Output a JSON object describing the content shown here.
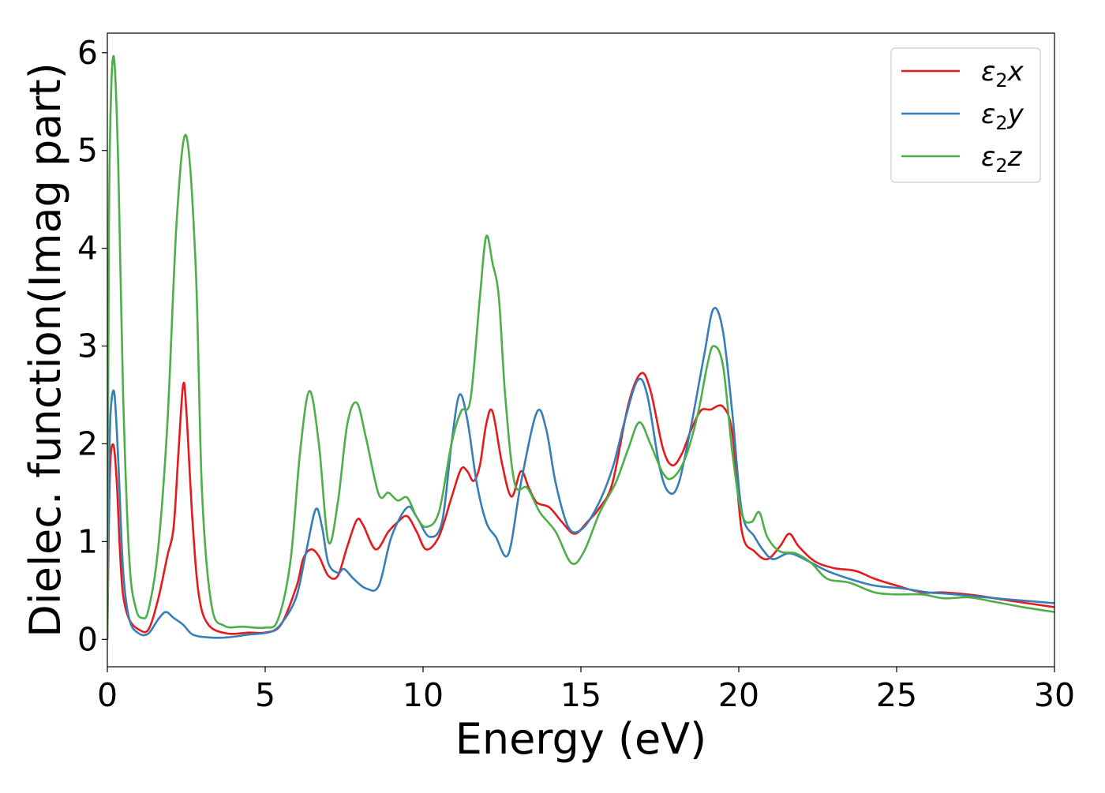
{
  "chart_data": {
    "type": "line",
    "title": "",
    "xlabel": "Energy (eV)",
    "ylabel": "Dielec. function(Imag part)",
    "xlim": [
      0,
      30
    ],
    "ylim": [
      -0.28,
      6.2
    ],
    "xticks": [
      0,
      5,
      10,
      15,
      20,
      25,
      30
    ],
    "yticks": [
      0,
      1,
      2,
      3,
      4,
      5,
      6
    ],
    "grid": false,
    "legend_position": "top-right",
    "series": [
      {
        "name": "ε2x",
        "legend": {
          "main": "ε",
          "sub": "2",
          "tail": "x"
        },
        "color": "#e41a1c",
        "points": [
          [
            0,
            0
          ],
          [
            0.05,
            1.2
          ],
          [
            0.1,
            1.85
          ],
          [
            0.2,
            1.98
          ],
          [
            0.3,
            1.6
          ],
          [
            0.4,
            0.9
          ],
          [
            0.5,
            0.45
          ],
          [
            0.7,
            0.2
          ],
          [
            1.0,
            0.1
          ],
          [
            1.3,
            0.1
          ],
          [
            1.6,
            0.4
          ],
          [
            1.9,
            0.85
          ],
          [
            2.1,
            1.15
          ],
          [
            2.25,
            1.9
          ],
          [
            2.4,
            2.6
          ],
          [
            2.5,
            2.35
          ],
          [
            2.7,
            1.2
          ],
          [
            2.9,
            0.45
          ],
          [
            3.2,
            0.15
          ],
          [
            3.8,
            0.06
          ],
          [
            4.5,
            0.07
          ],
          [
            5.0,
            0.07
          ],
          [
            5.5,
            0.15
          ],
          [
            6.0,
            0.55
          ],
          [
            6.2,
            0.82
          ],
          [
            6.45,
            0.92
          ],
          [
            6.7,
            0.85
          ],
          [
            7.0,
            0.65
          ],
          [
            7.3,
            0.65
          ],
          [
            7.6,
            0.95
          ],
          [
            7.9,
            1.22
          ],
          [
            8.1,
            1.17
          ],
          [
            8.5,
            0.92
          ],
          [
            8.9,
            1.1
          ],
          [
            9.2,
            1.2
          ],
          [
            9.5,
            1.26
          ],
          [
            9.8,
            1.1
          ],
          [
            10.1,
            0.92
          ],
          [
            10.5,
            1.05
          ],
          [
            10.9,
            1.45
          ],
          [
            11.2,
            1.74
          ],
          [
            11.4,
            1.72
          ],
          [
            11.6,
            1.62
          ],
          [
            11.8,
            1.78
          ],
          [
            12.0,
            2.2
          ],
          [
            12.2,
            2.33
          ],
          [
            12.5,
            1.8
          ],
          [
            12.8,
            1.46
          ],
          [
            13.1,
            1.72
          ],
          [
            13.35,
            1.55
          ],
          [
            13.6,
            1.4
          ],
          [
            14.0,
            1.35
          ],
          [
            14.4,
            1.2
          ],
          [
            14.8,
            1.08
          ],
          [
            15.2,
            1.2
          ],
          [
            15.6,
            1.35
          ],
          [
            16.0,
            1.6
          ],
          [
            16.5,
            2.4
          ],
          [
            16.9,
            2.72
          ],
          [
            17.2,
            2.55
          ],
          [
            17.6,
            1.95
          ],
          [
            17.9,
            1.78
          ],
          [
            18.2,
            1.9
          ],
          [
            18.5,
            2.15
          ],
          [
            18.8,
            2.34
          ],
          [
            19.1,
            2.35
          ],
          [
            19.5,
            2.38
          ],
          [
            19.8,
            2.1
          ],
          [
            20.1,
            1.1
          ],
          [
            20.5,
            0.9
          ],
          [
            20.9,
            0.82
          ],
          [
            21.3,
            0.95
          ],
          [
            21.6,
            1.08
          ],
          [
            21.9,
            0.95
          ],
          [
            22.4,
            0.8
          ],
          [
            23.0,
            0.73
          ],
          [
            23.7,
            0.7
          ],
          [
            24.3,
            0.62
          ],
          [
            25.0,
            0.55
          ],
          [
            25.8,
            0.48
          ],
          [
            26.5,
            0.48
          ],
          [
            27.5,
            0.45
          ],
          [
            28.5,
            0.4
          ],
          [
            30,
            0.33
          ]
        ]
      },
      {
        "name": "ε2y",
        "legend": {
          "main": "ε",
          "sub": "2",
          "tail": "y"
        },
        "color": "#377eb8",
        "points": [
          [
            0,
            0
          ],
          [
            0.05,
            1.5
          ],
          [
            0.1,
            2.3
          ],
          [
            0.22,
            2.52
          ],
          [
            0.35,
            1.8
          ],
          [
            0.5,
            0.7
          ],
          [
            0.7,
            0.2
          ],
          [
            1.0,
            0.06
          ],
          [
            1.3,
            0.06
          ],
          [
            1.6,
            0.2
          ],
          [
            1.85,
            0.28
          ],
          [
            2.1,
            0.22
          ],
          [
            2.4,
            0.15
          ],
          [
            2.7,
            0.05
          ],
          [
            3.2,
            0.02
          ],
          [
            3.8,
            0.02
          ],
          [
            4.5,
            0.05
          ],
          [
            5.2,
            0.08
          ],
          [
            5.6,
            0.2
          ],
          [
            6.0,
            0.45
          ],
          [
            6.3,
            0.9
          ],
          [
            6.6,
            1.33
          ],
          [
            6.8,
            1.15
          ],
          [
            7.0,
            0.78
          ],
          [
            7.3,
            0.68
          ],
          [
            7.5,
            0.72
          ],
          [
            7.8,
            0.62
          ],
          [
            8.2,
            0.52
          ],
          [
            8.6,
            0.55
          ],
          [
            9.0,
            1.05
          ],
          [
            9.5,
            1.35
          ],
          [
            9.8,
            1.25
          ],
          [
            10.2,
            1.05
          ],
          [
            10.6,
            1.2
          ],
          [
            10.9,
            2.0
          ],
          [
            11.15,
            2.5
          ],
          [
            11.4,
            2.25
          ],
          [
            11.7,
            1.6
          ],
          [
            12.0,
            1.2
          ],
          [
            12.3,
            1.05
          ],
          [
            12.7,
            0.87
          ],
          [
            13.1,
            1.6
          ],
          [
            13.6,
            2.32
          ],
          [
            13.9,
            2.15
          ],
          [
            14.2,
            1.6
          ],
          [
            14.6,
            1.15
          ],
          [
            15.0,
            1.12
          ],
          [
            15.5,
            1.35
          ],
          [
            16.0,
            1.75
          ],
          [
            16.4,
            2.25
          ],
          [
            16.8,
            2.65
          ],
          [
            17.1,
            2.5
          ],
          [
            17.5,
            1.75
          ],
          [
            17.8,
            1.5
          ],
          [
            18.1,
            1.6
          ],
          [
            18.5,
            2.2
          ],
          [
            18.9,
            2.9
          ],
          [
            19.2,
            3.38
          ],
          [
            19.5,
            3.15
          ],
          [
            19.8,
            2.3
          ],
          [
            20.1,
            1.3
          ],
          [
            20.5,
            1.05
          ],
          [
            20.8,
            0.9
          ],
          [
            21.1,
            0.82
          ],
          [
            21.6,
            0.88
          ],
          [
            22.2,
            0.8
          ],
          [
            22.8,
            0.7
          ],
          [
            23.5,
            0.62
          ],
          [
            24.3,
            0.55
          ],
          [
            25.2,
            0.52
          ],
          [
            26.0,
            0.48
          ],
          [
            26.5,
            0.47
          ],
          [
            27.5,
            0.44
          ],
          [
            28.5,
            0.41
          ],
          [
            30,
            0.37
          ]
        ]
      },
      {
        "name": "ε2z",
        "legend": {
          "main": "ε",
          "sub": "2",
          "tail": "z"
        },
        "color": "#4daf4a",
        "points": [
          [
            0,
            0
          ],
          [
            0.05,
            4.2
          ],
          [
            0.12,
            5.6
          ],
          [
            0.22,
            5.92
          ],
          [
            0.35,
            4.8
          ],
          [
            0.5,
            2.5
          ],
          [
            0.7,
            0.8
          ],
          [
            0.9,
            0.32
          ],
          [
            1.1,
            0.22
          ],
          [
            1.3,
            0.3
          ],
          [
            1.6,
            0.9
          ],
          [
            1.9,
            2.2
          ],
          [
            2.2,
            4.3
          ],
          [
            2.5,
            5.15
          ],
          [
            2.8,
            3.8
          ],
          [
            3.0,
            1.5
          ],
          [
            3.3,
            0.35
          ],
          [
            3.7,
            0.14
          ],
          [
            4.3,
            0.13
          ],
          [
            5.0,
            0.12
          ],
          [
            5.4,
            0.2
          ],
          [
            5.8,
            0.8
          ],
          [
            6.1,
            1.9
          ],
          [
            6.4,
            2.54
          ],
          [
            6.7,
            2.0
          ],
          [
            7.0,
            1.0
          ],
          [
            7.3,
            1.4
          ],
          [
            7.6,
            2.2
          ],
          [
            7.9,
            2.42
          ],
          [
            8.2,
            2.05
          ],
          [
            8.6,
            1.48
          ],
          [
            8.9,
            1.5
          ],
          [
            9.2,
            1.42
          ],
          [
            9.5,
            1.45
          ],
          [
            9.8,
            1.25
          ],
          [
            10.1,
            1.15
          ],
          [
            10.5,
            1.3
          ],
          [
            10.9,
            2.0
          ],
          [
            11.2,
            2.33
          ],
          [
            11.5,
            2.45
          ],
          [
            11.8,
            3.5
          ],
          [
            12.0,
            4.12
          ],
          [
            12.2,
            3.85
          ],
          [
            12.4,
            3.5
          ],
          [
            12.6,
            2.5
          ],
          [
            12.9,
            1.6
          ],
          [
            13.3,
            1.55
          ],
          [
            13.7,
            1.3
          ],
          [
            14.2,
            1.1
          ],
          [
            14.7,
            0.78
          ],
          [
            15.1,
            0.9
          ],
          [
            15.6,
            1.3
          ],
          [
            16.1,
            1.6
          ],
          [
            16.5,
            1.95
          ],
          [
            16.85,
            2.22
          ],
          [
            17.2,
            2.0
          ],
          [
            17.6,
            1.7
          ],
          [
            17.9,
            1.65
          ],
          [
            18.3,
            1.85
          ],
          [
            18.7,
            2.3
          ],
          [
            19.0,
            2.8
          ],
          [
            19.2,
            3.0
          ],
          [
            19.5,
            2.8
          ],
          [
            19.8,
            1.9
          ],
          [
            20.1,
            1.28
          ],
          [
            20.4,
            1.2
          ],
          [
            20.65,
            1.3
          ],
          [
            20.9,
            1.05
          ],
          [
            21.3,
            0.9
          ],
          [
            21.8,
            0.88
          ],
          [
            22.3,
            0.78
          ],
          [
            22.8,
            0.62
          ],
          [
            23.5,
            0.58
          ],
          [
            24.3,
            0.48
          ],
          [
            25.0,
            0.46
          ],
          [
            25.8,
            0.46
          ],
          [
            26.5,
            0.42
          ],
          [
            27.3,
            0.43
          ],
          [
            28.0,
            0.39
          ],
          [
            29.0,
            0.33
          ],
          [
            30,
            0.28
          ]
        ]
      }
    ]
  }
}
